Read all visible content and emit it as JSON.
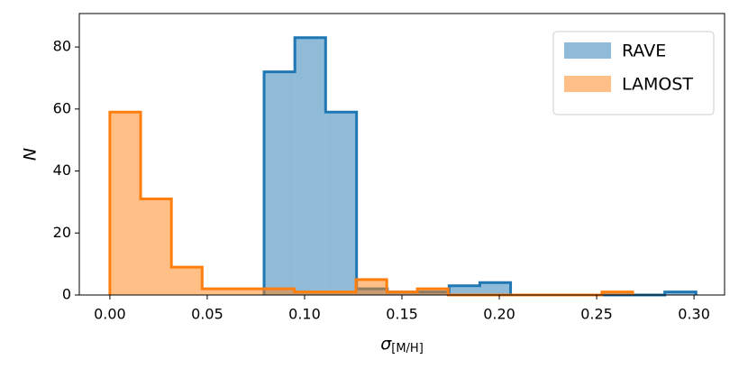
{
  "chart_data": {
    "type": "histogram",
    "xlabel": {
      "symbol": "σ",
      "subscript": "[M/H]"
    },
    "ylabel": "N",
    "xlim": [
      -0.0157,
      0.3157
    ],
    "ylim": [
      0,
      90.8
    ],
    "xticks": [
      {
        "value": 0,
        "label": "0.00"
      },
      0.05,
      {
        "value": 0.1,
        "label": "0.10"
      },
      0.15,
      {
        "value": 0.2,
        "label": "0.20"
      },
      0.25,
      {
        "value": 0.3,
        "label": "0.30"
      }
    ],
    "yticks": [
      0,
      20,
      40,
      60,
      80
    ],
    "legend": "upper right",
    "series": [
      {
        "name": "RAVE",
        "color": "#1f77b4",
        "bins": [
          0.0792,
          0.095,
          0.1108,
          0.1267,
          0.1425,
          0.1583,
          0.1742,
          0.19,
          0.2058,
          0.2217,
          0.2375,
          0.2533,
          0.2692,
          0.285,
          0.301
        ],
        "values": [
          72,
          83,
          59,
          2,
          1,
          1,
          3,
          4,
          0,
          0,
          0,
          0,
          0,
          1
        ]
      },
      {
        "name": "LAMOST",
        "color": "#ff7f0e",
        "bins": [
          0,
          0.0158,
          0.0316,
          0.0474,
          0.0632,
          0.079,
          0.0948,
          0.1106,
          0.1264,
          0.1422,
          0.1579,
          0.1737,
          0.1895,
          0.2053,
          0.2211,
          0.2369,
          0.2527,
          0.2685
        ],
        "values": [
          59,
          31,
          9,
          2,
          2,
          2,
          1,
          1,
          5,
          1,
          2,
          0,
          0,
          0,
          0,
          0,
          1
        ]
      }
    ]
  }
}
